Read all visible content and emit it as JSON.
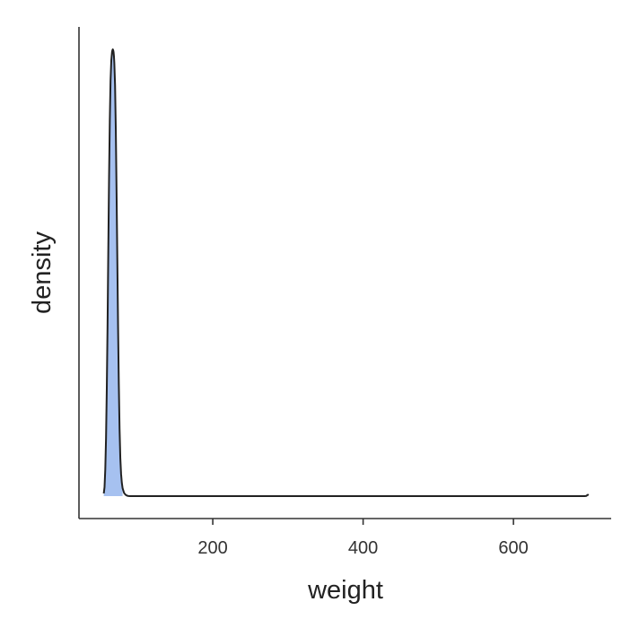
{
  "chart_data": {
    "type": "area",
    "title": "",
    "xlabel": "weight",
    "ylabel": "density",
    "xlim": [
      22,
      730
    ],
    "ylim": [
      0,
      1.05
    ],
    "x_ticks": [
      200,
      400,
      600
    ],
    "x_tick_labels": [
      "200",
      "400",
      "600"
    ],
    "y_ticks": [],
    "grid": false,
    "legend": "none",
    "colors": {
      "fill": "#a6c1f0",
      "line": "#222222",
      "axis": "#333333"
    },
    "series": [
      {
        "x": [
          55,
          56,
          57,
          58,
          59,
          60,
          61,
          62,
          63,
          64,
          65,
          66,
          66.5,
          67,
          67.5,
          68,
          68.5,
          69,
          70,
          71,
          72,
          73,
          74,
          75,
          76,
          77,
          78,
          79,
          80,
          82,
          84,
          86,
          88,
          90,
          95,
          100,
          150,
          200,
          300,
          400,
          500,
          600,
          690,
          695,
          697,
          698,
          699,
          700
        ],
        "y": [
          0.006,
          0.02,
          0.06,
          0.13,
          0.24,
          0.38,
          0.55,
          0.71,
          0.84,
          0.93,
          0.975,
          0.994,
          0.998,
          1.0,
          0.998,
          0.994,
          0.985,
          0.97,
          0.92,
          0.82,
          0.68,
          0.53,
          0.38,
          0.25,
          0.15,
          0.085,
          0.05,
          0.03,
          0.018,
          0.007,
          0.003,
          0.001,
          0.0003,
          0.0,
          0.0,
          0.0,
          0.0,
          0.0,
          0.0,
          0.0,
          0.0,
          0.0,
          0.0,
          0.0,
          0.0005,
          0.002,
          0.003,
          0.002
        ]
      }
    ],
    "shaded_range": [
      55,
      80
    ]
  }
}
